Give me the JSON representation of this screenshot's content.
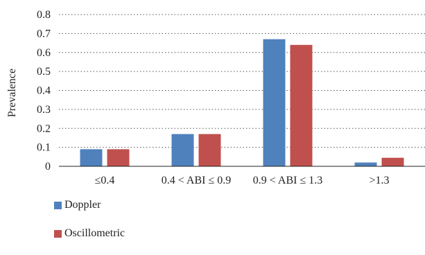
{
  "chart_data": {
    "type": "bar",
    "categories": [
      "≤0.4",
      "0.4 < ABI ≤ 0.9",
      "0.9 < ABI ≤ 1.3",
      ">1.3"
    ],
    "series": [
      {
        "name": "Doppler",
        "values": [
          0.09,
          0.17,
          0.67,
          0.02
        ],
        "color": "#4f81bd"
      },
      {
        "name": "Oscillometric",
        "values": [
          0.09,
          0.17,
          0.64,
          0.045
        ],
        "color": "#c0504d"
      }
    ],
    "ylabel": "Prevalence",
    "xlabel": "",
    "ylim": [
      0,
      0.8
    ],
    "yticks": [
      "0",
      "0.1",
      "0.2",
      "0.3",
      "0.4",
      "0.5",
      "0.6",
      "0.7",
      "0.8"
    ],
    "grid": true,
    "legend_position": "bottom-left"
  }
}
